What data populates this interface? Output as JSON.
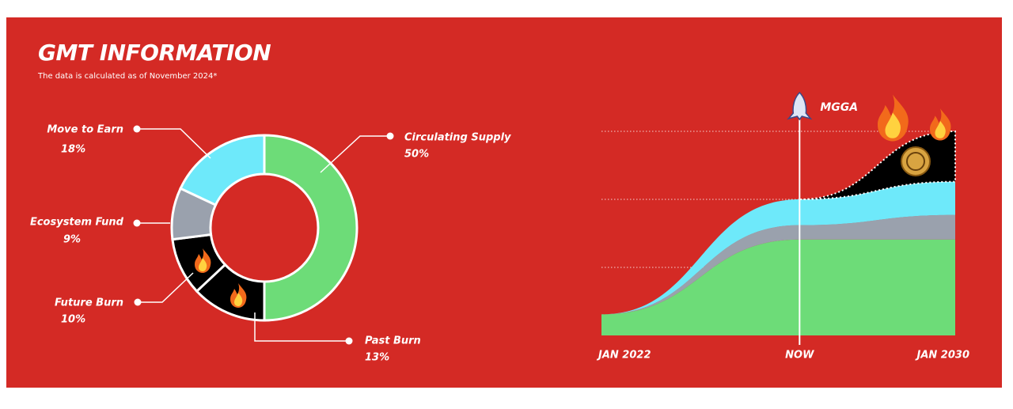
{
  "header": {
    "title": "GMT INFORMATION",
    "subtitle": "The data is calculated as of November 2024*"
  },
  "chart_data": [
    {
      "type": "pie",
      "donut": true,
      "categories": [
        "Circulating Supply",
        "Past Burn",
        "Future Burn",
        "Ecosystem Fund",
        "Move to Earn"
      ],
      "values": [
        50,
        13,
        10,
        9,
        18
      ],
      "value_labels": [
        "50%",
        "13%",
        "10%",
        "9%",
        "18%"
      ],
      "colors": [
        "#6ddc78",
        "#000000",
        "#000000",
        "#9aa1ad",
        "#6ee9fa"
      ]
    },
    {
      "type": "area",
      "stacked": true,
      "annotation": "MGGA",
      "categories": [
        "JAN 2022",
        "NOW",
        "JAN 2030"
      ],
      "ylim": [
        0,
        3
      ],
      "yticks": [
        1,
        2,
        3
      ],
      "grid": true,
      "series": [
        {
          "color": "#6ddc78",
          "values": [
            0.31,
            1.41,
            1.41
          ]
        },
        {
          "color": "#9aa1ad",
          "values": [
            0,
            0.21,
            0.36
          ]
        },
        {
          "color": "#6ee9fa",
          "values": [
            0,
            0.38,
            0.49
          ]
        },
        {
          "color": "#000000",
          "values": [
            null,
            0,
            0.74
          ]
        }
      ]
    }
  ]
}
